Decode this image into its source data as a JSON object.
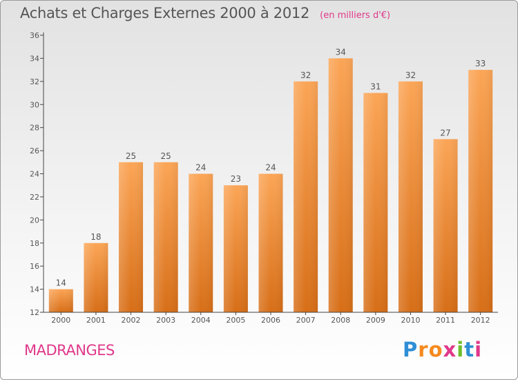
{
  "chart_title": "Achats et Charges Externes 2000 à 2012",
  "chart_unit": "(en milliers d'€)",
  "commune": "MADRANGES",
  "logo": {
    "text": "Proxiti",
    "letter_colors": [
      "#2f8fd6",
      "#f58a1f",
      "#f58a1f",
      "#e0388a",
      "#6cbf2c",
      "#2f8fd6",
      "#e0388a"
    ]
  },
  "colors": {
    "bar_top": "#fba556",
    "bar_bottom": "#d76e17",
    "axis": "#444444",
    "label": "#555555"
  },
  "chart_data": {
    "type": "bar",
    "title": "Achats et Charges Externes 2000 à 2012",
    "xlabel": "",
    "ylabel": "",
    "categories": [
      "2000",
      "2001",
      "2002",
      "2003",
      "2004",
      "2005",
      "2006",
      "2007",
      "2008",
      "2009",
      "2010",
      "2011",
      "2012"
    ],
    "values": [
      14,
      18,
      25,
      25,
      24,
      23,
      24,
      32,
      34,
      31,
      32,
      27,
      33
    ],
    "ylim": [
      12,
      36
    ],
    "yticks": [
      12,
      14,
      16,
      18,
      20,
      22,
      24,
      26,
      28,
      30,
      32,
      34,
      36
    ],
    "grid": false,
    "legend": "none"
  }
}
